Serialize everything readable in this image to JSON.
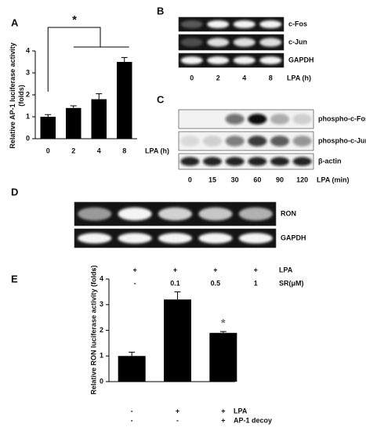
{
  "chart_data": [
    {
      "type": "bar",
      "panel": "A",
      "y_label": [
        "Relative AP-1 luciferase activity",
        "(folds)"
      ],
      "x_label": "LPA (h)",
      "categories": [
        "0",
        "2",
        "4",
        "8"
      ],
      "values": [
        1.0,
        1.4,
        1.8,
        3.5
      ],
      "errors": [
        0.1,
        0.1,
        0.25,
        0.2
      ],
      "color": "#000000",
      "ylim": [
        0,
        4
      ],
      "yticks": [
        0,
        1,
        2,
        3,
        4
      ],
      "annotation": "*"
    },
    {
      "type": "bar",
      "panel": "E",
      "y_label": [
        "Relative RON luciferase activity (folds)"
      ],
      "conditions": [
        {
          "name": "LPA",
          "values": [
            "-",
            "+",
            "+"
          ]
        },
        {
          "name": "AP-1 decoy",
          "values": [
            "-",
            "-",
            "+"
          ]
        }
      ],
      "values": [
        1.0,
        3.2,
        1.9
      ],
      "errors": [
        0.15,
        0.3,
        0.05
      ],
      "color": "#000000",
      "ylim": [
        0,
        4
      ],
      "yticks": [
        0,
        1,
        2,
        3,
        4
      ],
      "annotation": "*"
    }
  ],
  "blots": [
    {
      "panel": "B",
      "rows": [
        "c-Fos",
        "c-Jun",
        "GAPDH"
      ],
      "lanes": [
        "0",
        "2",
        "4",
        "8"
      ],
      "lane_axis": "LPA (h)"
    },
    {
      "panel": "C",
      "rows": [
        "phospho-c-Fos",
        "phospho-c-Jun",
        "β-actin"
      ],
      "lanes": [
        "0",
        "15",
        "30",
        "60",
        "90",
        "120"
      ],
      "lane_axis": "LPA (min)"
    },
    {
      "panel": "D",
      "rows": [
        "RON",
        "GAPDH"
      ],
      "conditions": [
        {
          "name": "LPA",
          "values": [
            "-",
            "+",
            "+",
            "+",
            "+"
          ]
        },
        {
          "name": "SR(μM)",
          "values": [
            "-",
            "-",
            "0.1",
            "0.5",
            "1"
          ]
        }
      ]
    }
  ]
}
